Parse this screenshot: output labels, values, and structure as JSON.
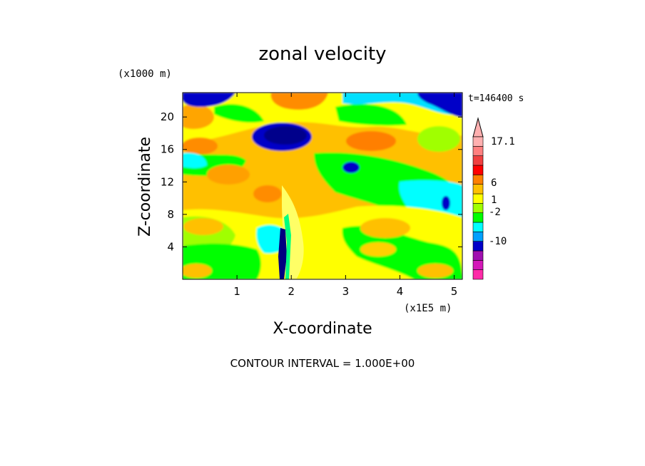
{
  "chart_data": {
    "type": "heatmap",
    "title": "zonal velocity",
    "xlabel": "X-coordinate",
    "ylabel": "Z-coordinate",
    "x_units": "(x1E5 m)",
    "y_units": "(x1000 m)",
    "time_label": "t=146400 s",
    "footer": "CONTOUR INTERVAL = 1.000E+00",
    "xlim": [
      0,
      5.15
    ],
    "ylim": [
      0,
      23
    ],
    "xticks": [
      1,
      2,
      3,
      4,
      5
    ],
    "yticks": [
      4,
      8,
      12,
      16,
      20
    ],
    "colorbar": {
      "labels": [
        "17.1",
        "6",
        "1",
        "-2",
        "-10"
      ],
      "colors": [
        "#ff2aa8",
        "#d418b8",
        "#a010b0",
        "#0000c8",
        "#00a0ff",
        "#00ffff",
        "#00ff00",
        "#a0ff00",
        "#ffff00",
        "#ffc000",
        "#ff7f00",
        "#ff0000",
        "#f04040",
        "#ff8080",
        "#ffb0b0"
      ]
    },
    "grid": false,
    "legend": "colorbar right"
  }
}
